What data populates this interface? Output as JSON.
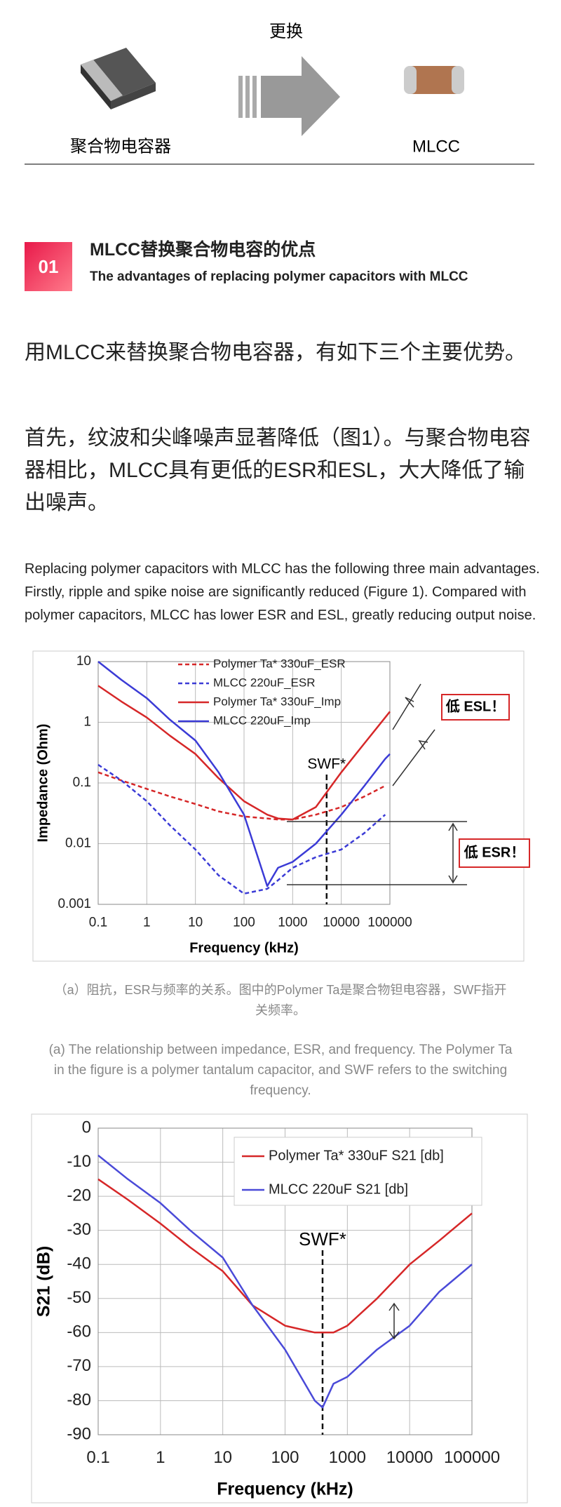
{
  "header": {
    "arrow_label": "更换",
    "left_label": "聚合物电容器",
    "right_label": "MLCC"
  },
  "section": {
    "number": "01",
    "title": "MLCC替换聚合物电容的优点",
    "subtitle": "The advantages of replacing polymer capacitors with MLCC"
  },
  "paragraphs": [
    "用MLCC来替换聚合物电容器，有如下三个主要优势。",
    "首先，纹波和尖峰噪声显著降低（图1）。与聚合物电容器相比，MLCC具有更低的ESR和ESL，大大降低了输出噪声。",
    "Replacing polymer capacitors with MLCC has the following three main advantages. Firstly, ripple and spike noise are significantly reduced (Figure 1). Compared with polymer capacitors, MLCC has lower ESR and ESL, greatly reducing output noise."
  ],
  "captions": [
    "（a）阻抗，ESR与频率的关系。图中的Polymer Ta是聚合物钽电容器，SWF指开关频率。",
    "(a) The relationship between impedance, ESR, and frequency. The Polymer Ta in the figure is a polymer tantalum capacitor, and SWF refers to the switching frequency."
  ],
  "chart_data": [
    {
      "type": "line",
      "x_label": "Frequency (kHz)",
      "y_label": "Impedance (Ohm)",
      "xscale": "log",
      "yscale": "log",
      "grid": true,
      "legend": "upper right",
      "xlim": [
        0.1,
        100000
      ],
      "ylim": [
        0.001,
        10
      ],
      "xticks": [
        0.1,
        1,
        10,
        100,
        1000,
        10000,
        100000
      ],
      "yticks": [
        0.001,
        0.01,
        0.1,
        1,
        10
      ],
      "x": [
        0.1,
        0.3,
        1,
        3,
        10,
        30,
        100,
        300,
        500,
        1000,
        3000,
        10000,
        30000,
        80000,
        100000
      ],
      "series": [
        {
          "name": "Polymer Ta* 330uF_ESR",
          "color": "#d62728",
          "dashed": true,
          "values": [
            0.15,
            0.11,
            0.08,
            0.06,
            0.045,
            0.034,
            0.028,
            0.026,
            0.025,
            0.025,
            0.03,
            0.04,
            0.06,
            0.09,
            null
          ]
        },
        {
          "name": "MLCC 220uF_ESR",
          "color": "#3b3bd6",
          "dashed": true,
          "values": [
            0.2,
            0.11,
            0.05,
            0.02,
            0.008,
            0.003,
            0.0015,
            0.0018,
            0.0025,
            0.004,
            0.006,
            0.008,
            0.015,
            0.03,
            null
          ]
        },
        {
          "name": "Polymer Ta* 330uF_Imp",
          "color": "#d62728",
          "dashed": false,
          "values": [
            4,
            2.2,
            1.2,
            0.6,
            0.3,
            0.12,
            0.05,
            0.03,
            0.026,
            0.025,
            0.04,
            0.15,
            0.45,
            1.2,
            1.5
          ]
        },
        {
          "name": "MLCC 220uF_Imp",
          "color": "#3b3bd6",
          "dashed": false,
          "values": [
            10,
            5,
            2.5,
            1.1,
            0.5,
            0.15,
            0.03,
            0.002,
            0.004,
            0.005,
            0.01,
            0.03,
            0.09,
            0.25,
            0.3
          ]
        }
      ],
      "swf_x": 5000,
      "swf_label": "SWF*",
      "esl_label": "低 ESL！",
      "esr_label": "低 ESR！"
    },
    {
      "type": "line",
      "x_label": "Frequency (kHz)",
      "y_label": "S21 (dB)",
      "xscale": "log",
      "yscale": "linear",
      "grid": true,
      "legend": "upper right",
      "xlim": [
        0.1,
        100000
      ],
      "ylim": [
        -90,
        0
      ],
      "xticks": [
        0.1,
        1,
        10,
        100,
        1000,
        10000,
        100000
      ],
      "yticks": [
        0,
        -10,
        -20,
        -30,
        -40,
        -50,
        -60,
        -70,
        -80,
        -90
      ],
      "x": [
        0.1,
        0.3,
        1,
        3,
        10,
        30,
        100,
        300,
        400,
        600,
        1000,
        3000,
        10000,
        30000,
        100000
      ],
      "series": [
        {
          "name": "Polymer Ta* 330uF S21 [db]",
          "color": "#d62728",
          "dashed": false,
          "values": [
            -15,
            -21,
            -28,
            -35,
            -42,
            -52,
            -58,
            -60,
            -60,
            -60,
            -58,
            -50,
            -40,
            -33,
            -25
          ]
        },
        {
          "name": "MLCC 220uF S21 [db]",
          "color": "#4a4ad8",
          "dashed": false,
          "values": [
            -8,
            -15,
            -22,
            -30,
            -38,
            -52,
            -65,
            -80,
            -82,
            -75,
            -73,
            -65,
            -58,
            -48,
            -40
          ]
        }
      ],
      "swf_x": 400,
      "swf_label": "SWF*"
    }
  ]
}
